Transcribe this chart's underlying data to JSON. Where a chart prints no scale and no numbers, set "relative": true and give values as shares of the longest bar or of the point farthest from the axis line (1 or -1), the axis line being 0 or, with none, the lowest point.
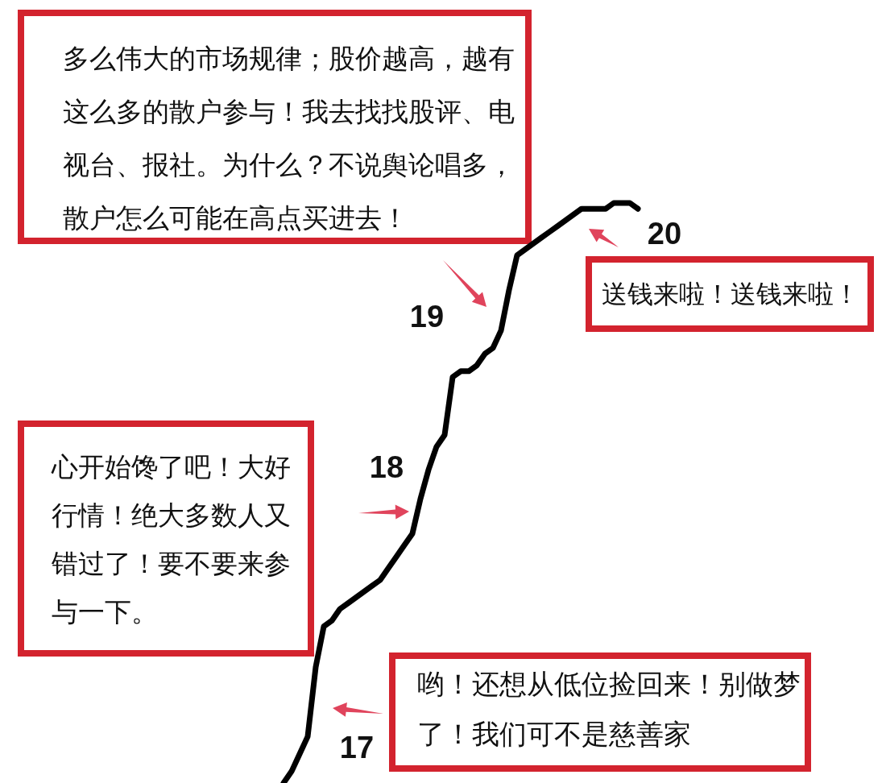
{
  "chart_data": {
    "type": "line",
    "relative": true,
    "marker": "none",
    "line_style": "solid",
    "categories": [
      null,
      null,
      null,
      null,
      null,
      null,
      null,
      null,
      null,
      null,
      null,
      null,
      null,
      null,
      null,
      null,
      null,
      null,
      null,
      null,
      null,
      null,
      null,
      null,
      null,
      null,
      null,
      null,
      null,
      null,
      null,
      null,
      null,
      null,
      null,
      null,
      null,
      null,
      null,
      null,
      null,
      null,
      null,
      null,
      null
    ],
    "series": [
      {
        "color": "#000000",
        "values": [
          0,
          0.02,
          0.05,
          0.08,
          0.2,
          0.27,
          0.28,
          0.3,
          0.31,
          0.32,
          0.33,
          0.34,
          0.35,
          0.37,
          0.39,
          0.41,
          0.43,
          0.49,
          0.54,
          0.58,
          0.6,
          0.7,
          0.71,
          0.71,
          0.72,
          0.74,
          0.75,
          0.78,
          0.85,
          0.91,
          0.92,
          0.93,
          0.94,
          0.95,
          0.96,
          0.97,
          0.98,
          0.99,
          0.99,
          0.99,
          0.99,
          1,
          1,
          1,
          0.99
        ]
      }
    ],
    "annotations": [
      "多么伟大的市场规律；股价越高，越有这么多的散户参与！我去找找股评、电视台、报社。为什么？不说舆论唱多，散户怎么可能在高点买进去！",
      "20",
      "送钱来啦！送钱来啦！",
      "19",
      "心开始馋了吧！大好行情！绝大多数人又错过了！要不要来参与一下。",
      "18",
      "哟！还想从低位捡回来！别做梦了！我们可不是慈善家",
      "17"
    ]
  }
}
